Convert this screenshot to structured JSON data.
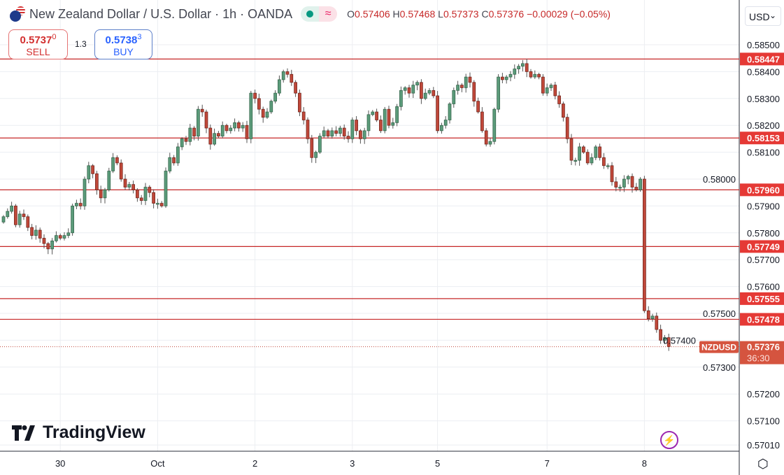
{
  "header": {
    "title": "New Zealand Dollar / U.S. Dollar · 1h · OANDA",
    "ohlc": [
      {
        "label": "O",
        "value": "0.57406"
      },
      {
        "label": "H",
        "value": "0.57468"
      },
      {
        "label": "L",
        "value": "0.57373"
      },
      {
        "label": "C",
        "value": "0.57376"
      }
    ],
    "change": "−0.00029 (−0.05%)"
  },
  "trade": {
    "sell_price": "0.5737",
    "sell_sup": "0",
    "sell_label": "SELL",
    "spread": "1.3",
    "buy_price": "0.5738",
    "buy_sup": "3",
    "buy_label": "BUY"
  },
  "currency": "USD",
  "logo": "TradingView",
  "colors": {
    "up": "#5b9b7a",
    "down": "#c0483a",
    "level": "#c62828",
    "grid": "#eceef2"
  },
  "chart_data": {
    "type": "candlestick",
    "symbol": "NZDUSD",
    "interval": "1h",
    "ylim": [
      0.57,
      0.586
    ],
    "y_ticks": [
      "0.58500",
      "0.58400",
      "0.58300",
      "0.58200",
      "0.58100",
      "0.58000",
      "0.57900",
      "0.57800",
      "0.57700",
      "0.57600",
      "0.57500",
      "0.57400",
      "0.57300",
      "0.57200",
      "0.57100",
      "0.57010"
    ],
    "x_ticks": [
      {
        "label": "30",
        "index": 14
      },
      {
        "label": "Oct",
        "index": 38
      },
      {
        "label": "2",
        "index": 62
      },
      {
        "label": "3",
        "index": 86
      },
      {
        "label": "5",
        "index": 107
      },
      {
        "label": "7",
        "index": 134
      },
      {
        "label": "8",
        "index": 158
      }
    ],
    "first_open": 0.5784,
    "closes": [
      0.5786,
      0.5788,
      0.579,
      0.5783,
      0.5787,
      0.5786,
      0.5782,
      0.5779,
      0.5781,
      0.5778,
      0.5776,
      0.5774,
      0.5777,
      0.5779,
      0.5778,
      0.5779,
      0.578,
      0.579,
      0.5791,
      0.579,
      0.58,
      0.5805,
      0.5802,
      0.5796,
      0.5793,
      0.5796,
      0.5803,
      0.5808,
      0.5806,
      0.58,
      0.5797,
      0.5798,
      0.5796,
      0.5793,
      0.5792,
      0.5797,
      0.5795,
      0.5791,
      0.5791,
      0.579,
      0.5803,
      0.5808,
      0.5806,
      0.5812,
      0.5815,
      0.5814,
      0.5819,
      0.5816,
      0.5826,
      0.5825,
      0.5819,
      0.5813,
      0.5817,
      0.5816,
      0.582,
      0.5818,
      0.5819,
      0.5821,
      0.5819,
      0.582,
      0.5815,
      0.5832,
      0.583,
      0.5826,
      0.5823,
      0.5825,
      0.5829,
      0.5832,
      0.5837,
      0.584,
      0.5839,
      0.5836,
      0.5832,
      0.5825,
      0.5822,
      0.5815,
      0.5808,
      0.581,
      0.5816,
      0.5818,
      0.5816,
      0.5818,
      0.5817,
      0.5819,
      0.5816,
      0.5815,
      0.5822,
      0.5818,
      0.5815,
      0.5818,
      0.5824,
      0.5825,
      0.5822,
      0.5818,
      0.5826,
      0.582,
      0.5821,
      0.5827,
      0.5833,
      0.5834,
      0.5832,
      0.5835,
      0.5836,
      0.583,
      0.5832,
      0.5833,
      0.5831,
      0.5818,
      0.582,
      0.5822,
      0.5828,
      0.5833,
      0.5835,
      0.5834,
      0.5838,
      0.5836,
      0.5829,
      0.5825,
      0.5818,
      0.5813,
      0.5814,
      0.5826,
      0.5838,
      0.5837,
      0.5838,
      0.5839,
      0.5841,
      0.5842,
      0.5843,
      0.584,
      0.5838,
      0.5839,
      0.5838,
      0.5832,
      0.5834,
      0.5835,
      0.5831,
      0.5828,
      0.5823,
      0.5815,
      0.5807,
      0.5807,
      0.5812,
      0.581,
      0.5806,
      0.5808,
      0.5812,
      0.5808,
      0.5805,
      0.5805,
      0.5799,
      0.5797,
      0.5797,
      0.58,
      0.5801,
      0.5797,
      0.5796,
      0.58,
      0.5751,
      0.5748,
      0.5749,
      0.5744,
      0.574,
      0.5741,
      0.57376
    ],
    "levels": [
      "0.58447",
      "0.58153",
      "0.57960",
      "0.57749",
      "0.57555",
      "0.57478"
    ],
    "last": {
      "symbol": "NZDUSD",
      "price": "0.57376",
      "countdown": "36:30"
    }
  }
}
